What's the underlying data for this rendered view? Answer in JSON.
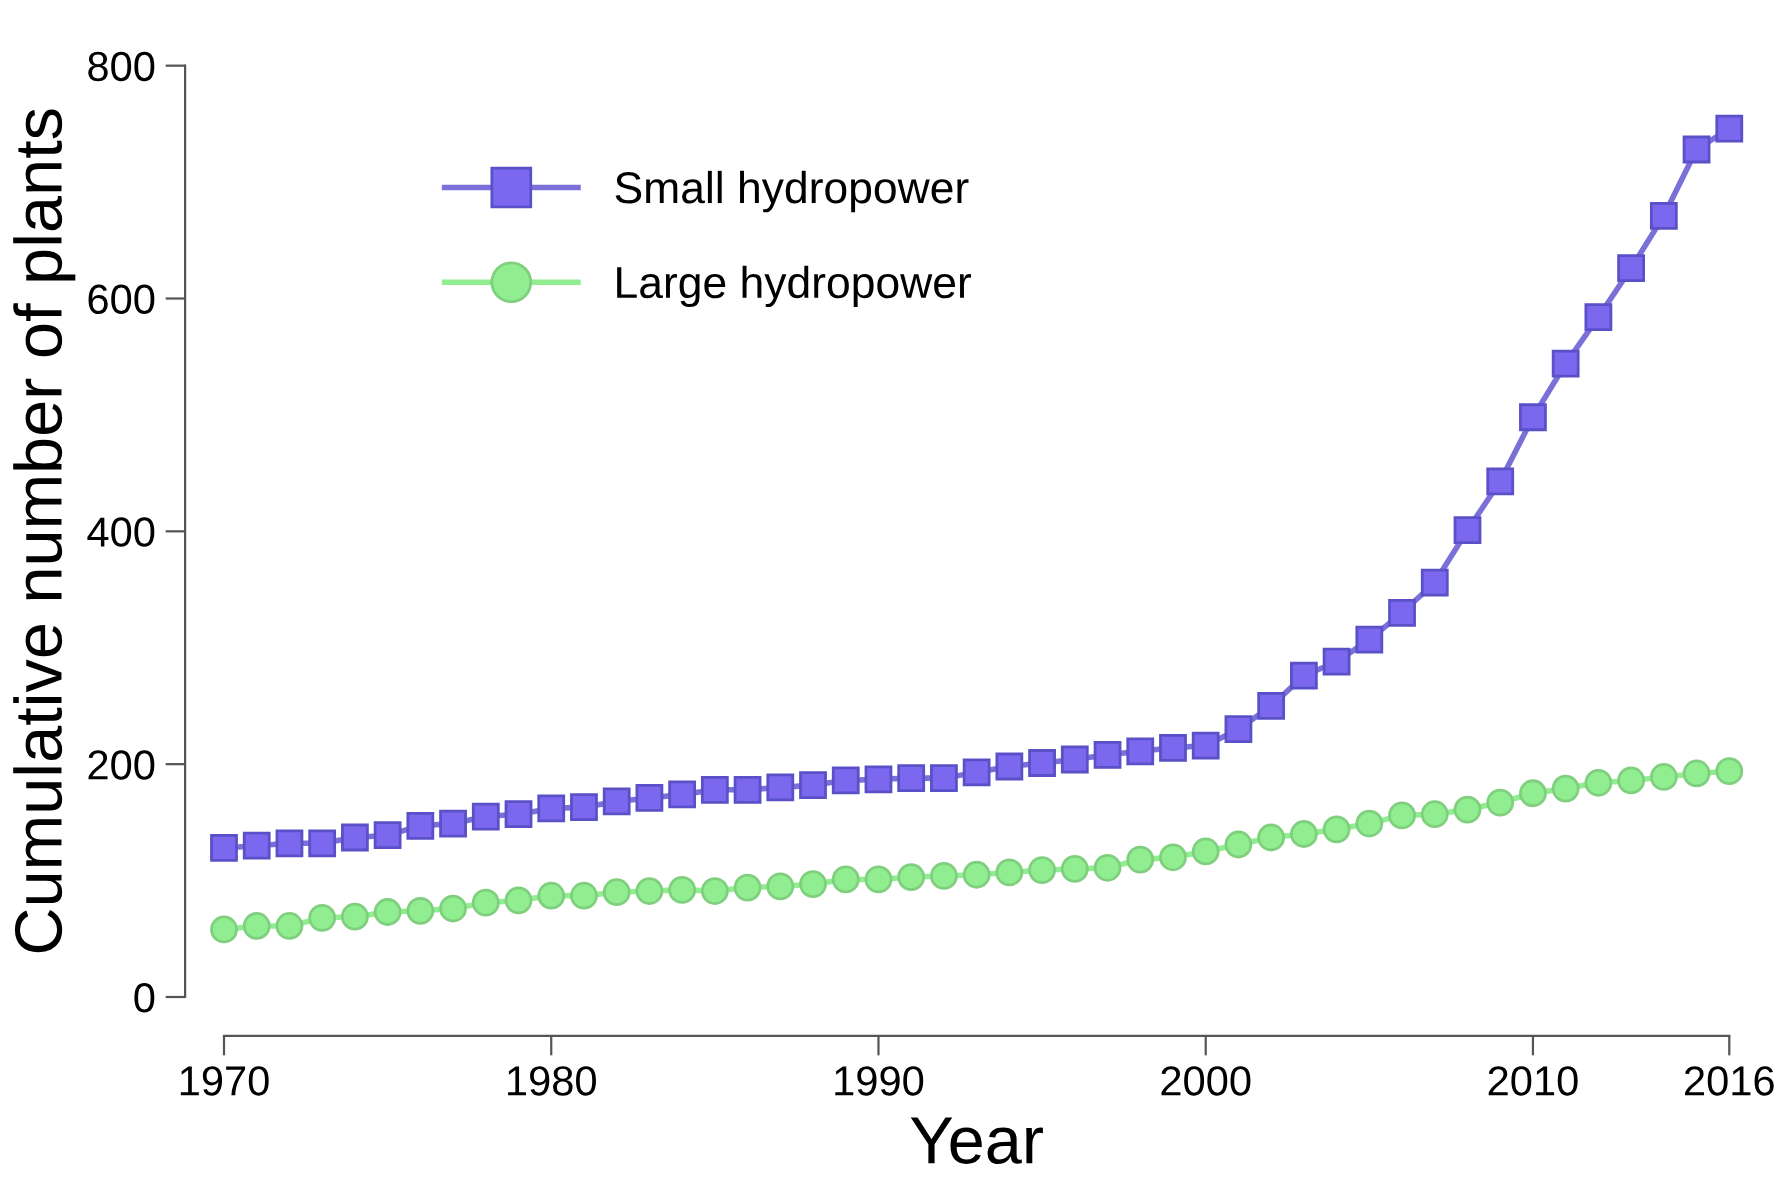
{
  "chart_data": {
    "type": "line",
    "xlabel": "Year",
    "ylabel": "Cumulative number of plants",
    "x": [
      1970,
      1971,
      1972,
      1973,
      1974,
      1975,
      1976,
      1977,
      1978,
      1979,
      1980,
      1981,
      1982,
      1983,
      1984,
      1985,
      1986,
      1987,
      1988,
      1989,
      1990,
      1991,
      1992,
      1993,
      1994,
      1995,
      1996,
      1997,
      1998,
      1999,
      2000,
      2001,
      2002,
      2003,
      2004,
      2005,
      2006,
      2007,
      2008,
      2009,
      2010,
      2011,
      2012,
      2013,
      2014,
      2015,
      2016
    ],
    "series": [
      {
        "name": "Small hydropower",
        "color": "#7b68ee",
        "marker": "square",
        "values": [
          128,
          130,
          132,
          132,
          137,
          139,
          147,
          149,
          155,
          157,
          162,
          163,
          168,
          171,
          174,
          178,
          178,
          180,
          182,
          186,
          187,
          188,
          188,
          193,
          198,
          201,
          204,
          208,
          211,
          214,
          216,
          230,
          250,
          276,
          288,
          307,
          330,
          356,
          401,
          443,
          498,
          544,
          584,
          626,
          671,
          728,
          746
        ]
      },
      {
        "name": "Large hydropower",
        "color": "#90ee90",
        "marker": "circle",
        "values": [
          58,
          61,
          61,
          68,
          69,
          73,
          74,
          76,
          81,
          83,
          87,
          87,
          90,
          91,
          92,
          91,
          94,
          95,
          97,
          101,
          101,
          103,
          104,
          105,
          107,
          109,
          110,
          111,
          118,
          120,
          125,
          131,
          137,
          140,
          144,
          149,
          156,
          157,
          161,
          167,
          175,
          179,
          184,
          186,
          189,
          192,
          194
        ]
      }
    ],
    "xlim": [
      1970,
      2016
    ],
    "xticks": [
      1970,
      1980,
      1990,
      2000,
      2010,
      2016
    ],
    "ylim": [
      0,
      800
    ],
    "yticks": [
      0,
      200,
      400,
      600,
      800
    ],
    "grid": false,
    "legend": "top left",
    "line_style": "solid"
  }
}
